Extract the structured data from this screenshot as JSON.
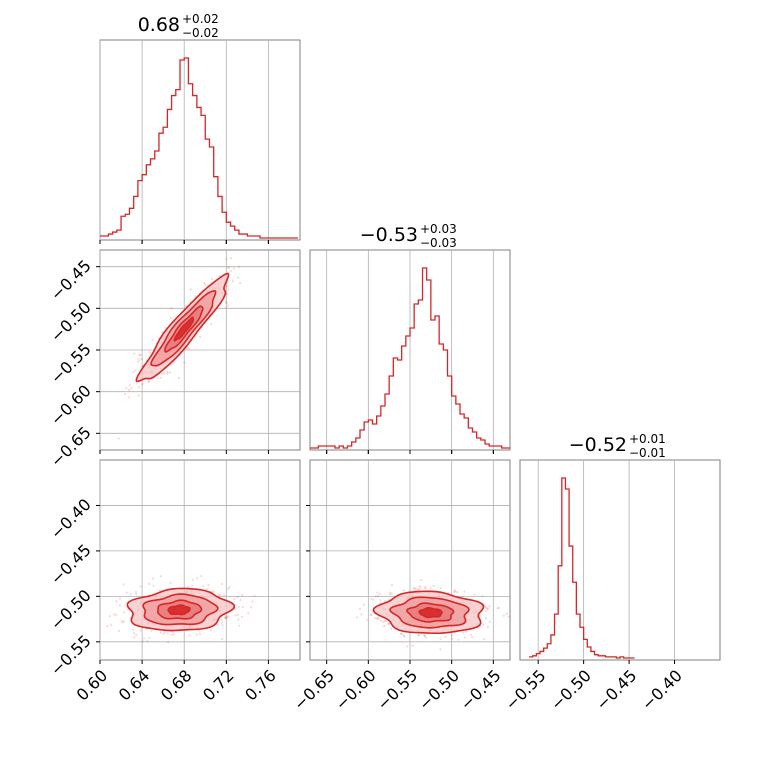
{
  "colors": {
    "line": "#d62728",
    "fill_light": "#f7c6c6",
    "fill_mid": "#ef9a9a",
    "fill_dark": "#e57373",
    "grid": "#b0b0b0",
    "axes": "#808080"
  },
  "chart_data": {
    "type": "corner",
    "parameters": [
      {
        "range": [
          0.6,
          0.79
        ],
        "ticks": [
          0.6,
          0.64,
          0.68,
          0.72,
          0.76
        ],
        "tick_labels": [
          "0.60",
          "0.64",
          "0.68",
          "0.72",
          "0.76"
        ],
        "title_value": "0.68",
        "title_plus": "+0.02",
        "title_minus": "−0.02"
      },
      {
        "range": [
          -0.67,
          -0.43
        ],
        "ticks": [
          -0.65,
          -0.6,
          -0.55,
          -0.5,
          -0.45
        ],
        "tick_labels": [
          "−0.65",
          "−0.60",
          "−0.55",
          "−0.50",
          "−0.45"
        ],
        "title_value": "−0.53",
        "title_plus": "+0.03",
        "title_minus": "−0.03"
      },
      {
        "range": [
          -0.57,
          -0.35
        ],
        "ticks": [
          -0.55,
          -0.5,
          -0.45,
          -0.4
        ],
        "tick_labels": [
          "−0.55",
          "−0.50",
          "−0.45",
          "−0.40"
        ],
        "title_value": "−0.52",
        "title_plus": "+0.01",
        "title_minus": "−0.01"
      }
    ],
    "marginals": [
      {
        "param": 0,
        "x": [
          0.6,
          0.604,
          0.608,
          0.612,
          0.616,
          0.62,
          0.624,
          0.628,
          0.632,
          0.636,
          0.64,
          0.644,
          0.648,
          0.652,
          0.656,
          0.66,
          0.664,
          0.668,
          0.672,
          0.676,
          0.68,
          0.684,
          0.688,
          0.692,
          0.696,
          0.7,
          0.704,
          0.708,
          0.712,
          0.716,
          0.72,
          0.724,
          0.728,
          0.732,
          0.736,
          0.74,
          0.744,
          0.748,
          0.752,
          0.756,
          0.76,
          0.764,
          0.768,
          0.772,
          0.776,
          0.78,
          0.784
        ],
        "values": [
          1,
          1,
          2,
          3,
          4,
          11,
          12,
          15,
          21,
          29,
          32,
          37,
          40,
          44,
          53,
          56,
          65,
          72,
          75,
          90,
          91,
          78,
          72,
          66,
          62,
          50,
          46,
          31,
          21,
          13,
          8,
          6,
          4,
          2,
          2,
          1,
          1,
          1,
          0,
          0,
          0,
          0,
          0,
          0,
          0,
          0,
          0
        ]
      },
      {
        "param": 1,
        "x": [
          -0.67,
          -0.665,
          -0.66,
          -0.655,
          -0.65,
          -0.645,
          -0.64,
          -0.635,
          -0.63,
          -0.625,
          -0.62,
          -0.615,
          -0.61,
          -0.605,
          -0.6,
          -0.595,
          -0.59,
          -0.585,
          -0.58,
          -0.575,
          -0.57,
          -0.565,
          -0.56,
          -0.555,
          -0.55,
          -0.545,
          -0.54,
          -0.535,
          -0.53,
          -0.525,
          -0.52,
          -0.515,
          -0.51,
          -0.505,
          -0.5,
          -0.495,
          -0.49,
          -0.485,
          -0.48,
          -0.475,
          -0.47,
          -0.465,
          -0.46,
          -0.455,
          -0.45,
          -0.445,
          -0.44,
          -0.435
        ],
        "values": [
          0,
          0,
          1,
          1,
          1,
          1,
          0,
          1,
          0,
          1,
          3,
          5,
          9,
          13,
          14,
          12,
          16,
          21,
          27,
          36,
          45,
          44,
          51,
          56,
          60,
          72,
          74,
          90,
          84,
          64,
          66,
          52,
          49,
          36,
          26,
          22,
          17,
          15,
          10,
          8,
          5,
          4,
          2,
          1,
          1,
          1,
          0,
          0
        ]
      },
      {
        "param": 2,
        "x": [
          -0.56,
          -0.556,
          -0.552,
          -0.548,
          -0.544,
          -0.54,
          -0.536,
          -0.532,
          -0.528,
          -0.524,
          -0.52,
          -0.516,
          -0.512,
          -0.508,
          -0.504,
          -0.5,
          -0.496,
          -0.492,
          -0.488,
          -0.484,
          -0.48,
          -0.476,
          -0.472,
          -0.468,
          -0.464,
          -0.46,
          -0.456,
          -0.452,
          -0.448
        ],
        "values": [
          1,
          2,
          4,
          6,
          9,
          13,
          21,
          40,
          84,
          164,
          154,
          102,
          69,
          40,
          28,
          17,
          10,
          6,
          3,
          2,
          2,
          1,
          1,
          1,
          0,
          1,
          0,
          0,
          0
        ]
      }
    ],
    "joint": [
      {
        "x_param": 0,
        "y_param": 1,
        "center": [
          0.68,
          -0.525
        ],
        "sigma": [
          0.02,
          0.03
        ],
        "rho": 0.93
      },
      {
        "x_param": 0,
        "y_param": 2,
        "center": [
          0.675,
          -0.515
        ],
        "sigma": [
          0.023,
          0.011
        ],
        "rho": 0.1
      },
      {
        "x_param": 1,
        "y_param": 2,
        "center": [
          -0.525,
          -0.518
        ],
        "sigma": [
          0.03,
          0.011
        ],
        "rho": -0.08
      }
    ]
  }
}
